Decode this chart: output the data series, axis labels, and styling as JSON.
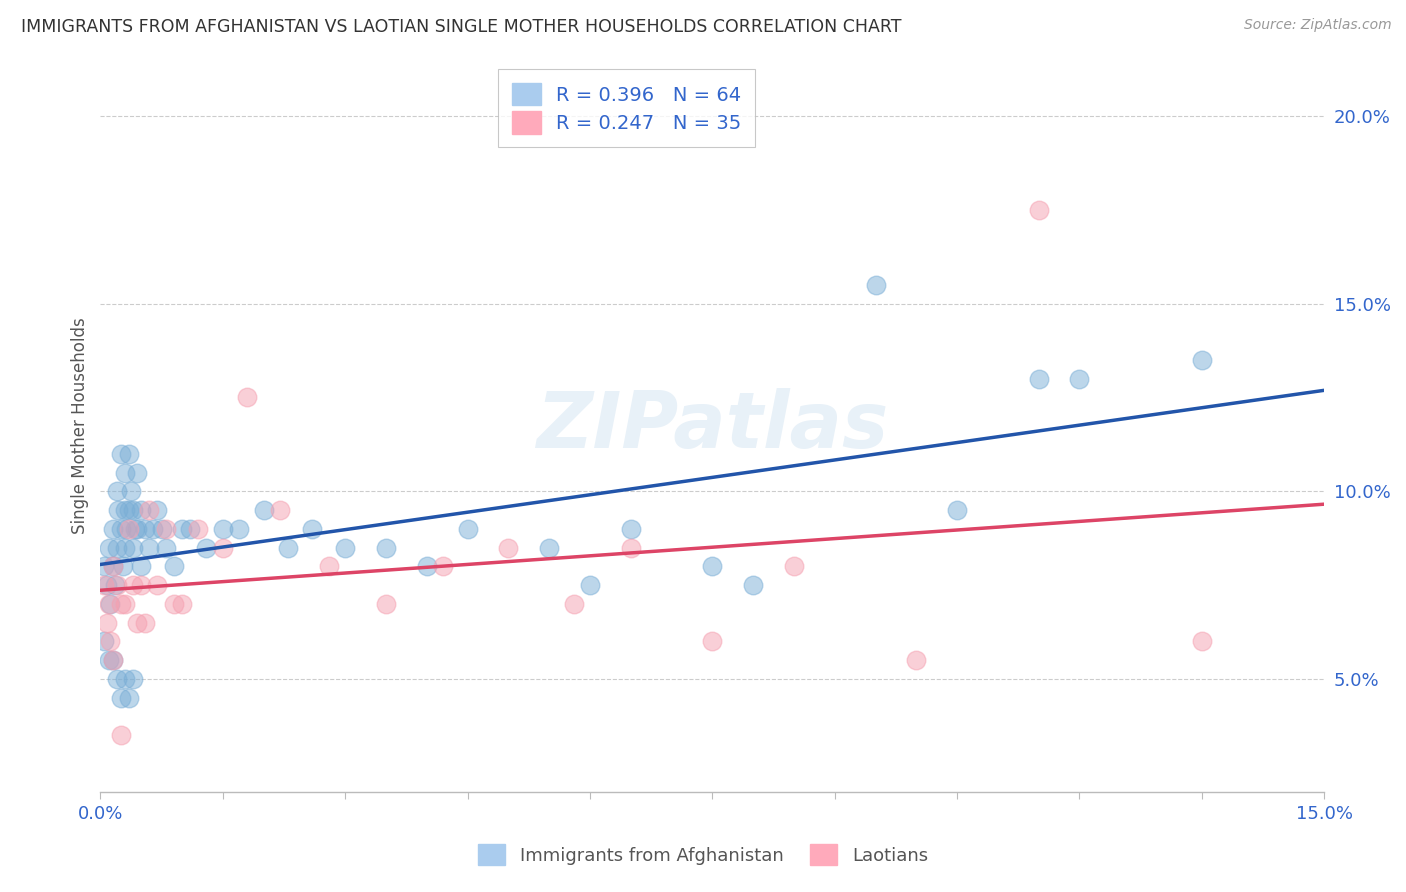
{
  "title": "IMMIGRANTS FROM AFGHANISTAN VS LAOTIAN SINGLE MOTHER HOUSEHOLDS CORRELATION CHART",
  "source": "Source: ZipAtlas.com",
  "ylabel": "Single Mother Households",
  "xlim": [
    0.0,
    15.0
  ],
  "ylim": [
    2.0,
    21.5
  ],
  "yticks": [
    5.0,
    10.0,
    15.0,
    20.0
  ],
  "xticks": [
    0.0,
    1.5,
    3.0,
    4.5,
    6.0,
    7.5,
    9.0,
    10.5,
    12.0,
    13.5,
    15.0
  ],
  "series1_label": "Immigrants from Afghanistan",
  "series1_color": "#7aaed6",
  "series1_line_color": "#2255aa",
  "series1_R": 0.396,
  "series1_N": 64,
  "series2_label": "Laotians",
  "series2_color": "#f5a0b0",
  "series2_line_color": "#dd4466",
  "series2_R": 0.247,
  "series2_N": 35,
  "blue_scatter_x": [
    0.05,
    0.08,
    0.1,
    0.12,
    0.15,
    0.15,
    0.18,
    0.2,
    0.2,
    0.22,
    0.25,
    0.25,
    0.28,
    0.3,
    0.3,
    0.3,
    0.32,
    0.35,
    0.35,
    0.38,
    0.4,
    0.4,
    0.42,
    0.45,
    0.45,
    0.5,
    0.5,
    0.55,
    0.6,
    0.65,
    0.7,
    0.75,
    0.8,
    0.9,
    1.0,
    1.1,
    1.3,
    1.5,
    1.7,
    2.0,
    2.3,
    2.6,
    3.0,
    3.5,
    4.0,
    4.5,
    5.5,
    6.0,
    6.5,
    7.5,
    8.0,
    9.5,
    10.5,
    11.5,
    12.0,
    13.5,
    0.05,
    0.1,
    0.15,
    0.2,
    0.25,
    0.3,
    0.35,
    0.4
  ],
  "blue_scatter_y": [
    8.0,
    7.5,
    8.5,
    7.0,
    9.0,
    8.0,
    7.5,
    10.0,
    8.5,
    9.5,
    11.0,
    9.0,
    8.0,
    10.5,
    9.5,
    8.5,
    9.0,
    11.0,
    9.5,
    10.0,
    9.5,
    8.5,
    9.0,
    10.5,
    9.0,
    9.5,
    8.0,
    9.0,
    8.5,
    9.0,
    9.5,
    9.0,
    8.5,
    8.0,
    9.0,
    9.0,
    8.5,
    9.0,
    9.0,
    9.5,
    8.5,
    9.0,
    8.5,
    8.5,
    8.0,
    9.0,
    8.5,
    7.5,
    9.0,
    8.0,
    7.5,
    15.5,
    9.5,
    13.0,
    13.0,
    13.5,
    6.0,
    5.5,
    5.5,
    5.0,
    4.5,
    5.0,
    4.5,
    5.0
  ],
  "pink_scatter_x": [
    0.05,
    0.08,
    0.1,
    0.12,
    0.15,
    0.2,
    0.25,
    0.3,
    0.35,
    0.4,
    0.45,
    0.5,
    0.55,
    0.6,
    0.7,
    0.8,
    0.9,
    1.0,
    1.2,
    1.5,
    1.8,
    2.2,
    2.8,
    3.5,
    4.2,
    5.0,
    5.8,
    6.5,
    7.5,
    8.5,
    10.0,
    11.5,
    13.5,
    0.15,
    0.25
  ],
  "pink_scatter_y": [
    7.5,
    6.5,
    7.0,
    6.0,
    8.0,
    7.5,
    7.0,
    7.0,
    9.0,
    7.5,
    6.5,
    7.5,
    6.5,
    9.5,
    7.5,
    9.0,
    7.0,
    7.0,
    9.0,
    8.5,
    12.5,
    9.5,
    8.0,
    7.0,
    8.0,
    8.5,
    7.0,
    8.5,
    6.0,
    8.0,
    5.5,
    17.5,
    6.0,
    5.5,
    3.5
  ]
}
